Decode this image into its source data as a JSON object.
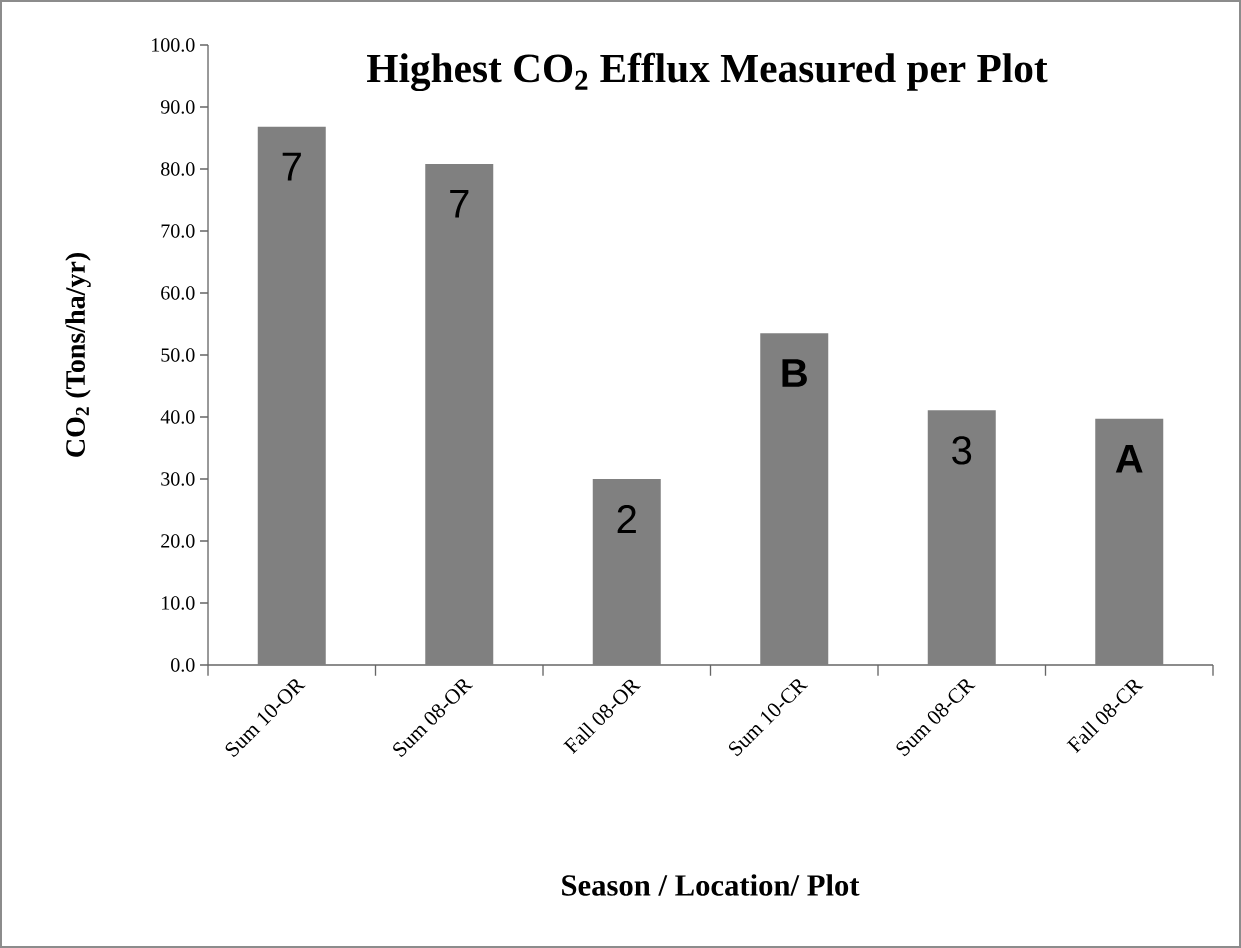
{
  "chart_data": {
    "type": "bar",
    "title": "Highest CO$_{2}$ Efflux Measured per Plot",
    "xlabel": "Season / Location/ Plot",
    "ylabel": "CO$_{2}$ (Tons/ha/yr)",
    "categories": [
      "Sum 10-OR",
      "Sum 08-OR",
      "Fall 08-OR",
      "Sum 10-CR",
      "Sum 08-CR",
      "Fall 08-CR"
    ],
    "values": [
      86.8,
      80.8,
      30.0,
      53.5,
      41.1,
      39.7
    ],
    "color": "#808080",
    "ylim": [
      0,
      100
    ],
    "yticks": [
      {
        "value": 0,
        "label": "0.0"
      },
      {
        "value": 10,
        "label": "10.0"
      },
      {
        "value": 20,
        "label": "20.0"
      },
      {
        "value": 30,
        "label": "30.0"
      },
      {
        "value": 40,
        "label": "40.0"
      },
      {
        "value": 50,
        "label": "50.0"
      },
      {
        "value": 60,
        "label": "60.0"
      },
      {
        "value": 70,
        "label": "70.0"
      },
      {
        "value": 80,
        "label": "80.0"
      },
      {
        "value": 90,
        "label": "90.0"
      },
      {
        "value": 100,
        "label": "100.0"
      }
    ],
    "grid": false,
    "annotations": [
      "7",
      "7",
      "2",
      "**B**",
      "3",
      "**A**"
    ]
  }
}
